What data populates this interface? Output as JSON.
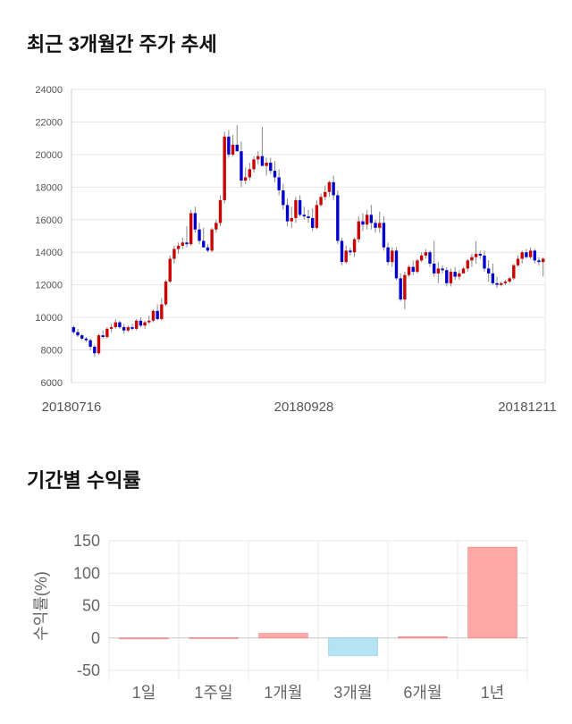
{
  "sections": {
    "price_title": "최근 3개월간 주가 추세",
    "return_title": "기간별 수익률"
  },
  "chart_data": [
    {
      "type": "candlestick",
      "title": "최근 3개월간 주가 추세",
      "ylim": [
        6000,
        24000
      ],
      "y_ticks": [
        "24000",
        "22000",
        "20000",
        "18000",
        "16000",
        "14000",
        "12000",
        "10000",
        "8000",
        "6000"
      ],
      "x_tick_labels": [
        "20180716",
        "20180928",
        "20181211"
      ],
      "grid": true,
      "up_color": "#cc0000",
      "down_color": "#0000cc",
      "ohlc": [
        [
          9400,
          9500,
          9000,
          9100
        ],
        [
          9100,
          9300,
          8800,
          8900
        ],
        [
          8900,
          9000,
          8600,
          8700
        ],
        [
          8700,
          8800,
          8500,
          8600
        ],
        [
          8600,
          8700,
          8000,
          8200
        ],
        [
          8200,
          8300,
          7600,
          7800
        ],
        [
          7800,
          9000,
          7700,
          8900
        ],
        [
          8900,
          9200,
          8700,
          8800
        ],
        [
          8800,
          9400,
          8700,
          9300
        ],
        [
          9300,
          9600,
          9100,
          9400
        ],
        [
          9400,
          9900,
          9300,
          9700
        ],
        [
          9700,
          9800,
          9300,
          9400
        ],
        [
          9400,
          9600,
          9000,
          9200
        ],
        [
          9200,
          9500,
          9100,
          9400
        ],
        [
          9400,
          9600,
          9200,
          9300
        ],
        [
          9300,
          9900,
          9200,
          9800
        ],
        [
          9800,
          10000,
          9400,
          9500
        ],
        [
          9500,
          9800,
          9300,
          9700
        ],
        [
          9700,
          10100,
          9600,
          9800
        ],
        [
          9800,
          10500,
          9700,
          10400
        ],
        [
          10400,
          10800,
          9800,
          9900
        ],
        [
          9900,
          11200,
          9800,
          10800
        ],
        [
          10800,
          12300,
          10700,
          12200
        ],
        [
          12200,
          13800,
          12100,
          13600
        ],
        [
          13600,
          14400,
          13300,
          14200
        ],
        [
          14200,
          14600,
          13900,
          14400
        ],
        [
          14400,
          14900,
          14200,
          14600
        ],
        [
          14600,
          15600,
          14300,
          14500
        ],
        [
          14500,
          16600,
          14400,
          16400
        ],
        [
          16400,
          16800,
          15200,
          15400
        ],
        [
          15400,
          15800,
          14500,
          14700
        ],
        [
          14700,
          15500,
          14300,
          14300
        ],
        [
          14300,
          14500,
          14000,
          14100
        ],
        [
          14100,
          15500,
          14000,
          15400
        ],
        [
          15400,
          16000,
          15200,
          15800
        ],
        [
          15800,
          17500,
          15600,
          17200
        ],
        [
          17200,
          21400,
          17000,
          21100
        ],
        [
          21100,
          21500,
          19800,
          20000
        ],
        [
          20000,
          21200,
          19900,
          20600
        ],
        [
          20600,
          21800,
          20300,
          20200
        ],
        [
          20200,
          20800,
          18000,
          18400
        ],
        [
          18400,
          19200,
          18200,
          18600
        ],
        [
          18600,
          19500,
          18400,
          19100
        ],
        [
          19100,
          19900,
          18900,
          19700
        ],
        [
          19700,
          20200,
          19400,
          19900
        ],
        [
          19900,
          21700,
          19300,
          19300
        ],
        [
          19300,
          19800,
          18700,
          19500
        ],
        [
          19500,
          19800,
          18800,
          19000
        ],
        [
          19000,
          19600,
          18300,
          18600
        ],
        [
          18600,
          19100,
          17500,
          17800
        ],
        [
          17800,
          18200,
          16600,
          16900
        ],
        [
          16900,
          17300,
          15600,
          15900
        ],
        [
          15900,
          16800,
          15500,
          16100
        ],
        [
          16100,
          17400,
          15800,
          17200
        ],
        [
          17200,
          17500,
          16200,
          16300
        ],
        [
          16300,
          16800,
          16000,
          16200
        ],
        [
          16200,
          16600,
          15800,
          16100
        ],
        [
          16100,
          16700,
          15300,
          15500
        ],
        [
          15500,
          17200,
          15400,
          16900
        ],
        [
          16900,
          17600,
          16800,
          17400
        ],
        [
          17400,
          18100,
          17200,
          17700
        ],
        [
          17700,
          18400,
          17400,
          18300
        ],
        [
          18300,
          18700,
          17200,
          17500
        ],
        [
          17500,
          17800,
          14500,
          14700
        ],
        [
          14700,
          14900,
          13200,
          13400
        ],
        [
          13400,
          14400,
          13300,
          14100
        ],
        [
          14100,
          14300,
          13800,
          14000
        ],
        [
          14000,
          14900,
          13700,
          14800
        ],
        [
          14800,
          16200,
          14600,
          15900
        ],
        [
          15900,
          16400,
          15300,
          15700
        ],
        [
          15700,
          16600,
          15400,
          16300
        ],
        [
          16300,
          16900,
          15400,
          15800
        ],
        [
          15800,
          16000,
          15200,
          15500
        ],
        [
          15500,
          16500,
          15200,
          15800
        ],
        [
          15800,
          16200,
          14100,
          14300
        ],
        [
          14300,
          14600,
          13200,
          13400
        ],
        [
          13400,
          14300,
          13100,
          14100
        ],
        [
          14100,
          14300,
          12300,
          12400
        ],
        [
          12400,
          12700,
          11000,
          11100
        ],
        [
          11100,
          12800,
          10500,
          12600
        ],
        [
          12600,
          13200,
          12500,
          13100
        ],
        [
          13100,
          13500,
          12600,
          12800
        ],
        [
          12800,
          13600,
          12700,
          13500
        ],
        [
          13500,
          14000,
          13400,
          13800
        ],
        [
          13800,
          14200,
          13600,
          14000
        ],
        [
          14000,
          14100,
          13100,
          13300
        ],
        [
          13300,
          14700,
          12500,
          12700
        ],
        [
          12700,
          13400,
          12100,
          13000
        ],
        [
          13000,
          13200,
          12700,
          12900
        ],
        [
          12900,
          13100,
          11900,
          12100
        ],
        [
          12100,
          13000,
          11900,
          12800
        ],
        [
          12800,
          13100,
          12300,
          12500
        ],
        [
          12500,
          12900,
          12300,
          12700
        ],
        [
          12700,
          13100,
          12700,
          13000
        ],
        [
          13000,
          13600,
          12800,
          13500
        ],
        [
          13500,
          13900,
          13100,
          13700
        ],
        [
          13700,
          14700,
          13300,
          13900
        ],
        [
          13900,
          14100,
          13600,
          13800
        ],
        [
          13800,
          14100,
          12800,
          13000
        ],
        [
          13000,
          13500,
          12200,
          12700
        ],
        [
          12700,
          13300,
          12000,
          12100
        ],
        [
          12100,
          12500,
          11800,
          12000
        ],
        [
          12000,
          12200,
          11900,
          12100
        ],
        [
          12100,
          12300,
          12000,
          12200
        ],
        [
          12200,
          12500,
          12100,
          12400
        ],
        [
          12400,
          13300,
          12300,
          13200
        ],
        [
          13200,
          13800,
          13100,
          13600
        ],
        [
          13600,
          14100,
          13300,
          14000
        ],
        [
          14000,
          14200,
          13600,
          13700
        ],
        [
          13700,
          14300,
          13600,
          14100
        ],
        [
          14100,
          14200,
          13300,
          13500
        ],
        [
          13500,
          13700,
          13200,
          13400
        ],
        [
          13400,
          13700,
          12500,
          13600
        ]
      ]
    },
    {
      "type": "bar",
      "title": "기간별 수익률",
      "ylabel": "수익률(%)",
      "categories": [
        "1일",
        "1주일",
        "1개월",
        "3개월",
        "6개월",
        "1년"
      ],
      "values": [
        0,
        0.5,
        7,
        -27,
        2,
        140
      ],
      "ylim": [
        -50,
        150
      ],
      "y_ticks": [
        "150",
        "100",
        "50",
        "0",
        "-50"
      ],
      "positive_color": "#ffa8a8",
      "negative_color": "#b4e4f2"
    }
  ]
}
